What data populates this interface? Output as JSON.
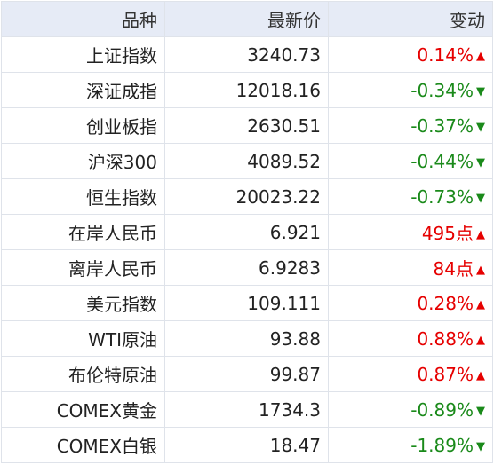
{
  "table": {
    "header": [
      "品种",
      "最新价",
      "变动"
    ],
    "rows": [
      [
        "上证指数",
        "3240.73",
        "0.14%",
        "▲"
      ],
      [
        "深证成指",
        "12018.16",
        "-0.34%",
        "▼"
      ],
      [
        "创业板指",
        "2630.51",
        "-0.37%",
        "▼"
      ],
      [
        "沪深300",
        "4089.52",
        "-0.44%",
        "▼"
      ],
      [
        "恒生指数",
        "20023.22",
        "-0.73%",
        "▼"
      ],
      [
        "在岸人民币",
        "6.921",
        "495点",
        "▲"
      ],
      [
        "离岸人民币",
        "6.9283",
        "84点",
        "▲"
      ],
      [
        "美元指数",
        "109.111",
        "0.28%",
        "▲"
      ],
      [
        "WTI原油",
        "93.88",
        "0.88%",
        "▲"
      ],
      [
        "布伦特原油",
        "99.87",
        "0.87%",
        "▲"
      ],
      [
        "COMEX黄金",
        "1734.3",
        "-0.89%",
        "▼"
      ],
      [
        "COMEX白银",
        "18.47",
        "-1.89%",
        "▼"
      ]
    ]
  }
}
